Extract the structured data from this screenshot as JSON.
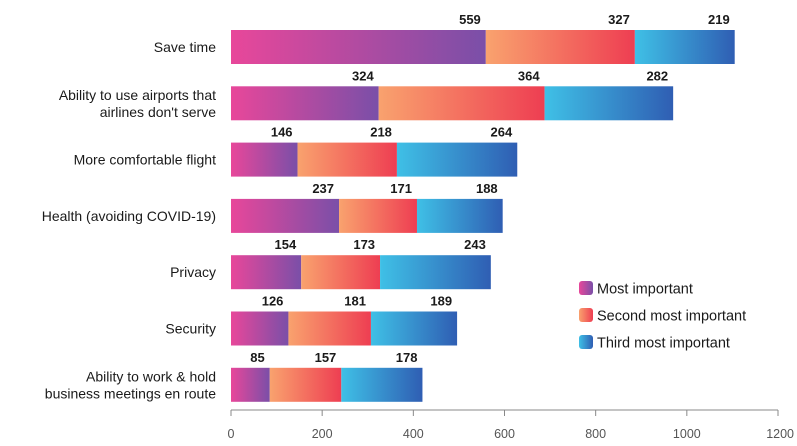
{
  "chart_data": {
    "type": "bar",
    "orientation": "horizontal",
    "stacked": true,
    "categories": [
      [
        "Save time"
      ],
      [
        "Ability to use airports that",
        "airlines don't serve"
      ],
      [
        "More comfortable flight"
      ],
      [
        "Health (avoiding COVID-19)"
      ],
      [
        "Privacy"
      ],
      [
        "Security"
      ],
      [
        "Ability to work & hold",
        "business meetings en route"
      ]
    ],
    "series": [
      {
        "name": "Most important",
        "values": [
          559,
          324,
          146,
          237,
          154,
          126,
          85
        ]
      },
      {
        "name": "Second most important",
        "values": [
          327,
          364,
          218,
          171,
          173,
          181,
          157
        ]
      },
      {
        "name": "Third most important",
        "values": [
          219,
          282,
          264,
          188,
          243,
          189,
          178
        ]
      }
    ],
    "xlim": [
      0,
      1200
    ],
    "xticks": [
      0,
      200,
      400,
      600,
      800,
      1000,
      1200
    ],
    "grid": false,
    "legend_position": "right",
    "series_gradients": [
      [
        "#e8479a",
        "#7a4fa8"
      ],
      [
        "#f9a26e",
        "#ee3e52"
      ],
      [
        "#3fc0e6",
        "#2f5eb3"
      ]
    ]
  }
}
